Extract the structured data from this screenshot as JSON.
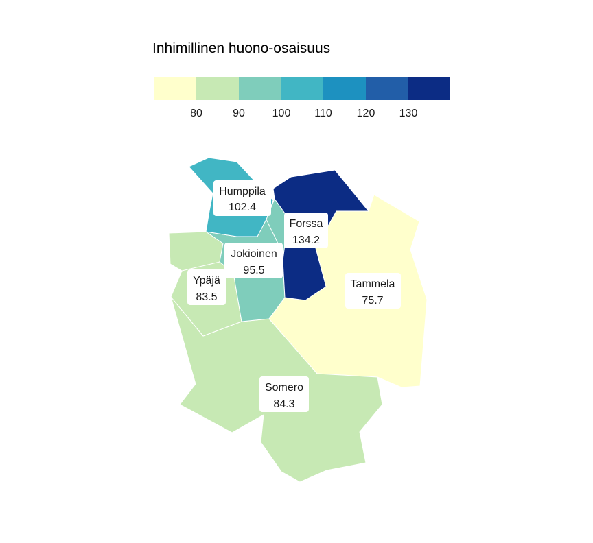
{
  "legend": {
    "title": "Inhimillinen huono-osaisuus",
    "bins": [
      {
        "color": "#ffffcc"
      },
      {
        "color": "#c7e9b4"
      },
      {
        "color": "#7fcdbb"
      },
      {
        "color": "#41b6c4"
      },
      {
        "color": "#1d91c0"
      },
      {
        "color": "#225ea8"
      },
      {
        "color": "#0c2c84"
      }
    ],
    "ticks": [
      "80",
      "90",
      "100",
      "110",
      "120",
      "130"
    ]
  },
  "regions": [
    {
      "name": "Humppila",
      "value": "102.4",
      "color": "#41b6c4"
    },
    {
      "name": "Forssa",
      "value": "134.2",
      "color": "#0c2c84"
    },
    {
      "name": "Jokioinen",
      "value": "95.5",
      "color": "#7fcdbb"
    },
    {
      "name": "Ypäjä",
      "value": "83.5",
      "color": "#c7e9b4"
    },
    {
      "name": "Tammela",
      "value": "75.7",
      "color": "#ffffcc"
    },
    {
      "name": "Somero",
      "value": "84.3",
      "color": "#c7e9b4"
    }
  ]
}
